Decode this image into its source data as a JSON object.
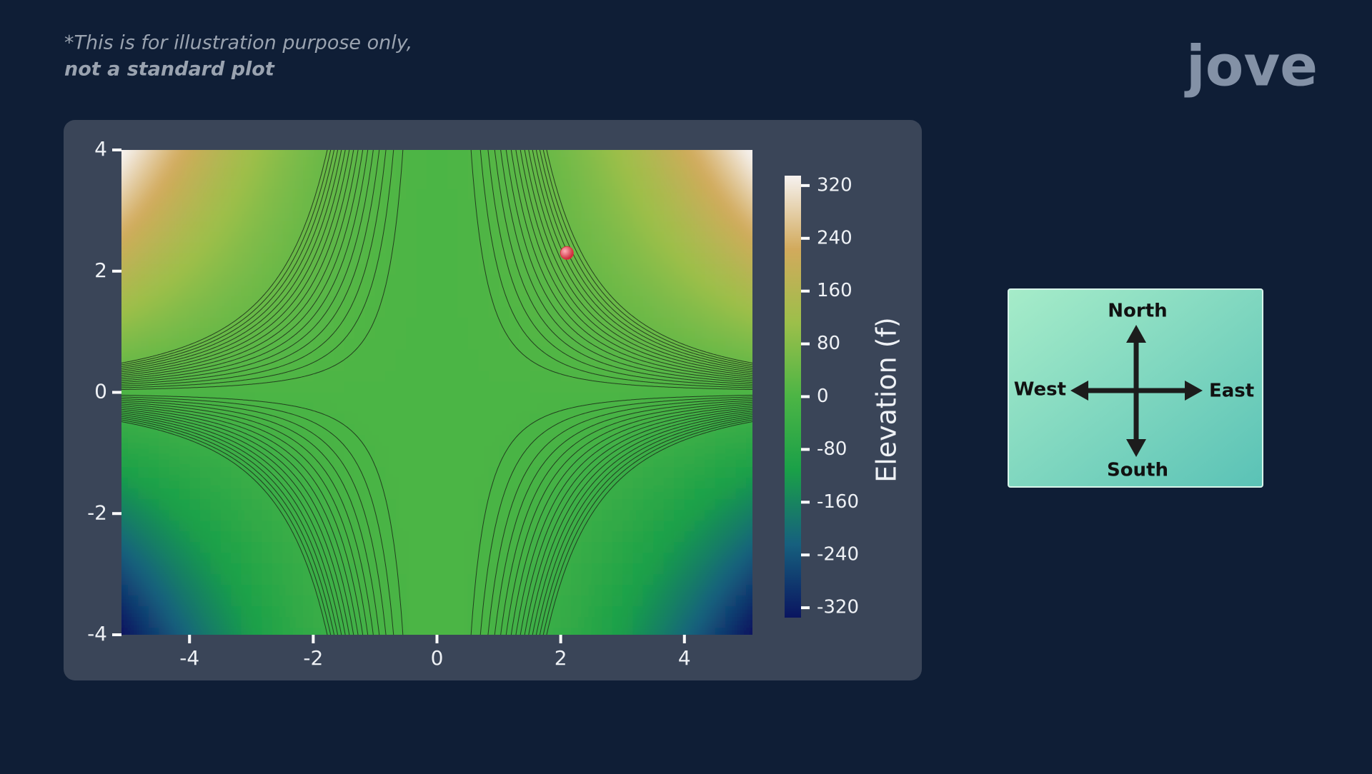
{
  "note": [
    "*This is for illustration purpose only,",
    "not a standard plot"
  ],
  "logo": "jove",
  "compass": {
    "north": "North",
    "south": "South",
    "east": "East",
    "west": "West"
  },
  "chart_data": {
    "type": "contour",
    "xlim": [
      -5.1,
      5.1
    ],
    "xticks": [
      -4,
      -2,
      0,
      2,
      4
    ],
    "ylim": [
      -4,
      4
    ],
    "yticks": [
      -4,
      -2,
      0,
      2,
      4
    ],
    "colorbar": {
      "label": "Elevation (f)",
      "lim": [
        -335,
        335
      ],
      "ticks": [
        -320,
        -240,
        -160,
        -80,
        0,
        80,
        160,
        240,
        320
      ]
    },
    "colormap": [
      "#0a1560",
      "#16607e",
      "#1aa048",
      "#4cb545",
      "#9cbf4a",
      "#d2aa5c",
      "#f6f2f0"
    ],
    "point": {
      "x": 2.1,
      "y": 2.3,
      "color": "#e0303f"
    }
  }
}
